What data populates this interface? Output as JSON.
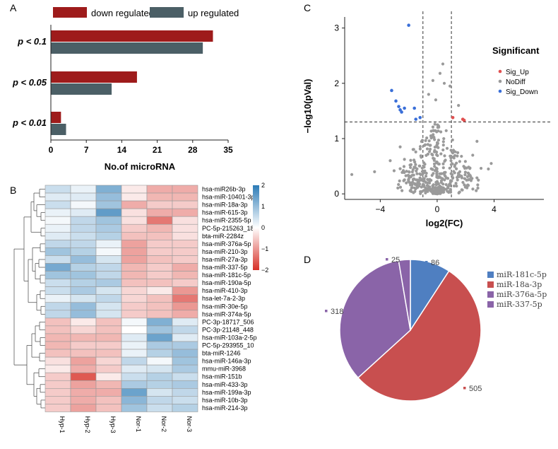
{
  "panel_labels": {
    "a": "A",
    "b": "B",
    "c": "C",
    "d": "D"
  },
  "chart_data": [
    {
      "panel": "A",
      "type": "bar",
      "orientation": "horizontal",
      "categories": [
        "p < 0.1",
        "p < 0.05",
        "p < 0.01"
      ],
      "series": [
        {
          "name": "down regulated",
          "color": "#9e1b1b",
          "values": [
            32,
            17,
            2
          ]
        },
        {
          "name": "up regulated",
          "color": "#4b5f66",
          "values": [
            30,
            12,
            3
          ]
        }
      ],
      "xlabel": "No.of  microRNA",
      "xlim": [
        0,
        35
      ],
      "xticks": [
        "0",
        "7",
        "14",
        "21",
        "28",
        "35"
      ],
      "legend": "top"
    },
    {
      "panel": "B",
      "type": "heatmap",
      "columns": [
        "Hyp-1",
        "Hyp-2",
        "Hyp-3",
        "Nor-1",
        "Nor-2",
        "Nor-3"
      ],
      "rows": [
        "hsa-miR26b-3p",
        "hsa-miR-10401-3p",
        "hsa-miR-18a-3p",
        "hsa-miR-615-3p",
        "hsa-miR-2355-5p",
        "PC-5p-215263_18",
        "bta-miR-2284z",
        "hsa-miR-376a-5p",
        "hsa-miR-210-3p",
        "hsa-miR-27a-3p",
        "hsa-miR-337-5p",
        "hsa-miR-181c-5p",
        "hsa-miR-190a-5p",
        "hsa-miR-410-3p",
        "hsa-let-7a-2-3p",
        "hsa-miR-30e-5p",
        "hsa-miR-374a-5p",
        "PC-3p-18717_506",
        "PC-3p-21148_448",
        "hsa-miR-103a-2-5p",
        "PC-5p-293955_10",
        "bta-miR-1246",
        "hsa-miR-146a-3p",
        "mmu-miR-3968",
        "hsa-miR-151b",
        "hsa-miR-433-3p",
        "hsa-miR-199a-3p",
        "hsa-miR-10b-3p",
        "hsa-miR-214-3p"
      ],
      "values": [
        [
          0.5,
          0.2,
          1.2,
          -0.2,
          -0.8,
          -0.8
        ],
        [
          0.3,
          0.3,
          1.0,
          -0.2,
          -0.7,
          -0.7
        ],
        [
          0.5,
          0.1,
          0.9,
          -0.8,
          -0.5,
          -0.5
        ],
        [
          0.2,
          0.3,
          1.5,
          -0.3,
          -0.8,
          -0.8
        ],
        [
          0.1,
          0.6,
          0.9,
          -0.3,
          -1.3,
          -0.3
        ],
        [
          0.2,
          0.6,
          0.8,
          -0.5,
          -0.7,
          -0.3
        ],
        [
          0.3,
          0.5,
          0.7,
          -0.6,
          -0.6,
          -0.3
        ],
        [
          0.6,
          0.6,
          0.2,
          -0.9,
          -0.5,
          -0.5
        ],
        [
          0.9,
          0.7,
          0.1,
          -0.9,
          -0.5,
          -0.5
        ],
        [
          0.5,
          1.0,
          0.4,
          -0.9,
          -0.6,
          -0.5
        ],
        [
          1.3,
          0.7,
          0.6,
          -0.7,
          -0.5,
          -0.8
        ],
        [
          0.9,
          0.9,
          0.6,
          -0.7,
          -0.5,
          -0.7
        ],
        [
          0.5,
          0.7,
          0.8,
          -0.6,
          -0.6,
          -0.5
        ],
        [
          0.5,
          0.8,
          0.4,
          -0.4,
          -0.2,
          -1.0
        ],
        [
          0.2,
          0.4,
          0.6,
          -0.4,
          -0.6,
          -1.3
        ],
        [
          0.6,
          1.0,
          0.4,
          -0.5,
          -0.6,
          -1.0
        ],
        [
          0.6,
          1.0,
          0.4,
          -0.5,
          -0.6,
          -0.8
        ],
        [
          -0.6,
          -0.2,
          -0.6,
          0.1,
          1.2,
          0.3
        ],
        [
          -0.6,
          -0.4,
          -0.6,
          0.0,
          0.9,
          0.6
        ],
        [
          -0.7,
          -0.7,
          -0.7,
          0.3,
          1.4,
          0.3
        ],
        [
          -0.7,
          -0.5,
          -0.5,
          0.2,
          0.8,
          0.8
        ],
        [
          -0.6,
          -0.6,
          -0.6,
          0.2,
          0.7,
          1.0
        ],
        [
          -0.3,
          -0.9,
          -0.4,
          0.6,
          0.1,
          0.9
        ],
        [
          -0.2,
          -0.8,
          -0.5,
          0.3,
          0.4,
          0.8
        ],
        [
          -0.5,
          -1.6,
          -0.2,
          0.5,
          0.7,
          0.5
        ],
        [
          -0.5,
          -0.9,
          -0.7,
          0.8,
          0.7,
          0.8
        ],
        [
          -0.5,
          -0.8,
          -0.8,
          1.4,
          0.4,
          0.6
        ],
        [
          -0.5,
          -0.8,
          -0.6,
          1.1,
          0.6,
          0.5
        ],
        [
          -0.5,
          -0.9,
          -0.6,
          0.9,
          0.5,
          0.7
        ]
      ],
      "scale_min": -2,
      "scale_max": 2,
      "colorbar_ticks": [
        "2",
        "1",
        "0",
        "−1",
        "−2"
      ],
      "colors": {
        "low": "#d73027",
        "mid": "#ffffff",
        "high": "#2c7bb6"
      }
    },
    {
      "panel": "C",
      "type": "scatter",
      "title": "Significant",
      "xlabel": "log2(FC)",
      "ylabel": "−log10(pVal)",
      "xlim": [
        -6.5,
        7.5
      ],
      "ylim": [
        -0.1,
        3.2
      ],
      "xticks": [
        "−4",
        "0",
        "4"
      ],
      "yticks": [
        "0",
        "1",
        "2",
        "3"
      ],
      "thresholds": {
        "x": [
          -1,
          1
        ],
        "y": 1.3
      },
      "legend": [
        {
          "name": "Sig_Up",
          "color": "#e05050"
        },
        {
          "name": "NoDiff",
          "color": "#9a9a9a"
        },
        {
          "name": "Sig_Down",
          "color": "#3a6fd8"
        }
      ],
      "sig_up": [
        [
          1.1,
          1.38
        ],
        [
          1.8,
          1.35
        ],
        [
          1.9,
          1.33
        ]
      ],
      "sig_down": [
        [
          -2.0,
          3.05
        ],
        [
          -3.2,
          1.87
        ],
        [
          -2.9,
          1.68
        ],
        [
          -2.7,
          1.58
        ],
        [
          -2.6,
          1.52
        ],
        [
          -2.3,
          1.55
        ],
        [
          -1.6,
          1.55
        ],
        [
          -1.5,
          1.35
        ],
        [
          -1.2,
          1.38
        ],
        [
          -2.5,
          1.48
        ]
      ],
      "nodiff_outliers": [
        [
          0.4,
          2.35
        ],
        [
          0.2,
          2.18
        ],
        [
          -0.3,
          2.05
        ],
        [
          0.5,
          2.0
        ],
        [
          0.9,
          1.95
        ],
        [
          -0.6,
          1.8
        ],
        [
          1.5,
          1.6
        ],
        [
          -0.1,
          1.7
        ],
        [
          2.8,
          0.95
        ],
        [
          -4.4,
          0.4
        ],
        [
          -6.0,
          0.35
        ],
        [
          3.8,
          0.55
        ],
        [
          3.6,
          0.45
        ],
        [
          -3.3,
          0.6
        ],
        [
          2.5,
          0.7
        ],
        [
          -2.6,
          0.85
        ]
      ]
    },
    {
      "panel": "D",
      "type": "pie",
      "labels": [
        "miR-181c-5p",
        "miR-18a-3p",
        "miR-376a-5p",
        "miR-337-5p"
      ],
      "values": [
        86,
        505,
        318,
        25
      ],
      "colors": [
        "#4f7fc1",
        "#c84f4f",
        "#8a64a8",
        "#8a64a8"
      ],
      "value_labels": [
        "86",
        "505",
        "318",
        "25"
      ]
    }
  ]
}
